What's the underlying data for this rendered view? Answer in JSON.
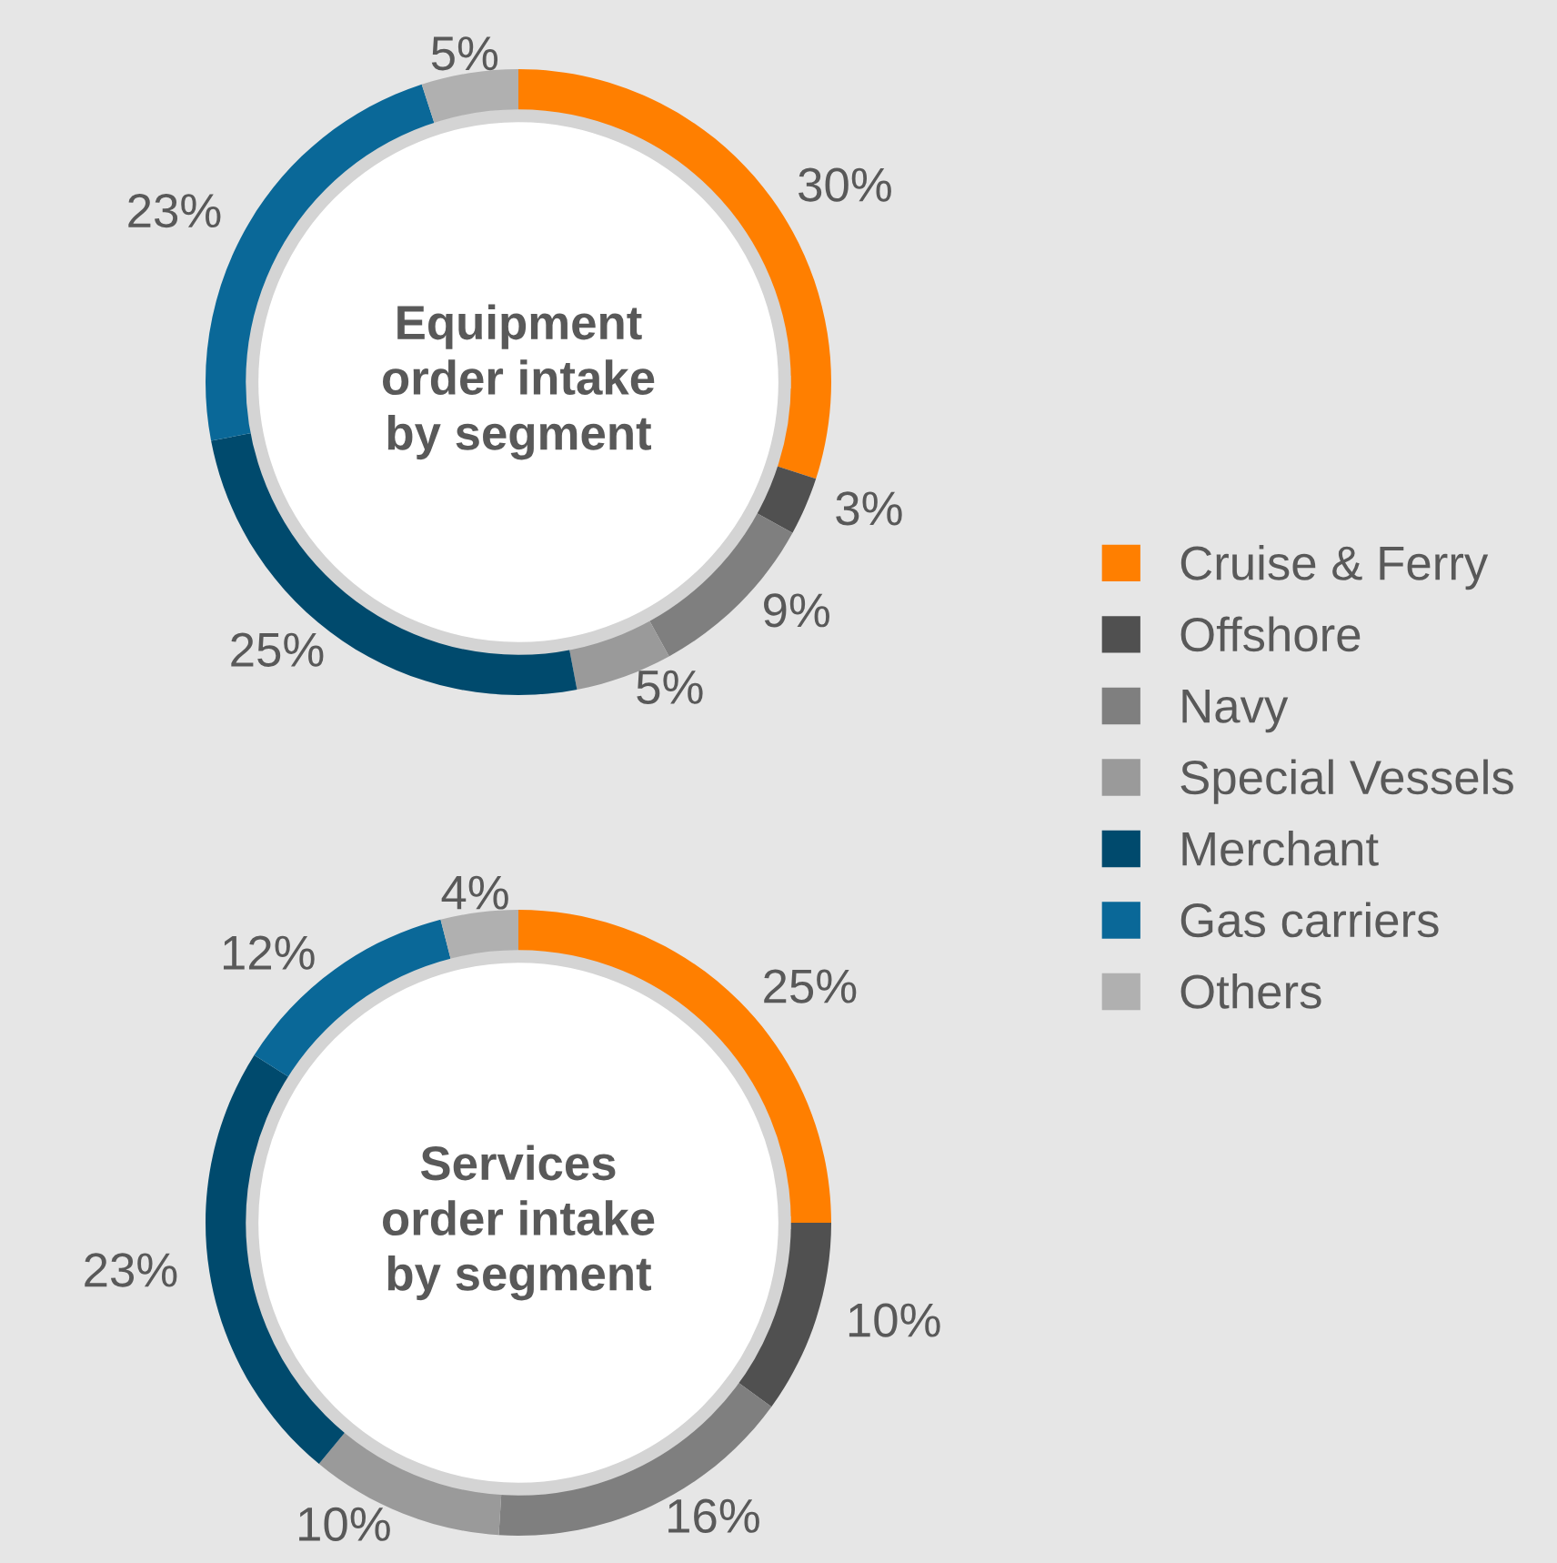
{
  "chart_data": [
    {
      "type": "donut",
      "title": "Equipment\norder intake\nby segment",
      "categories": [
        "Cruise & Ferry",
        "Offshore",
        "Navy",
        "Special Vessels",
        "Merchant",
        "Gas carriers",
        "Others"
      ],
      "values": [
        30,
        3,
        9,
        5,
        25,
        23,
        5
      ],
      "value_labels": [
        "30%",
        "3%",
        "9%",
        "5%",
        "25%",
        "23%",
        "5%"
      ],
      "colors": [
        "#ff7f00",
        "#505050",
        "#7f7f7f",
        "#9a9a9a",
        "#004a6d",
        "#0a6898",
        "#b0b0b0"
      ],
      "legend": "right"
    },
    {
      "type": "donut",
      "title": "Services\norder intake\nby segment",
      "categories": [
        null,
        null,
        null,
        null,
        null,
        null,
        null
      ],
      "values": [
        25,
        10,
        16,
        10,
        23,
        12,
        4
      ],
      "value_labels": [
        "25%",
        "10%",
        "16%",
        "10%",
        "23%",
        "12%",
        "4%"
      ],
      "colors": [
        "#ff7f00",
        "#505050",
        "#7f7f7f",
        "#9a9a9a",
        "#004a6d",
        "#0a6898",
        "#b0b0b0"
      ]
    }
  ]
}
